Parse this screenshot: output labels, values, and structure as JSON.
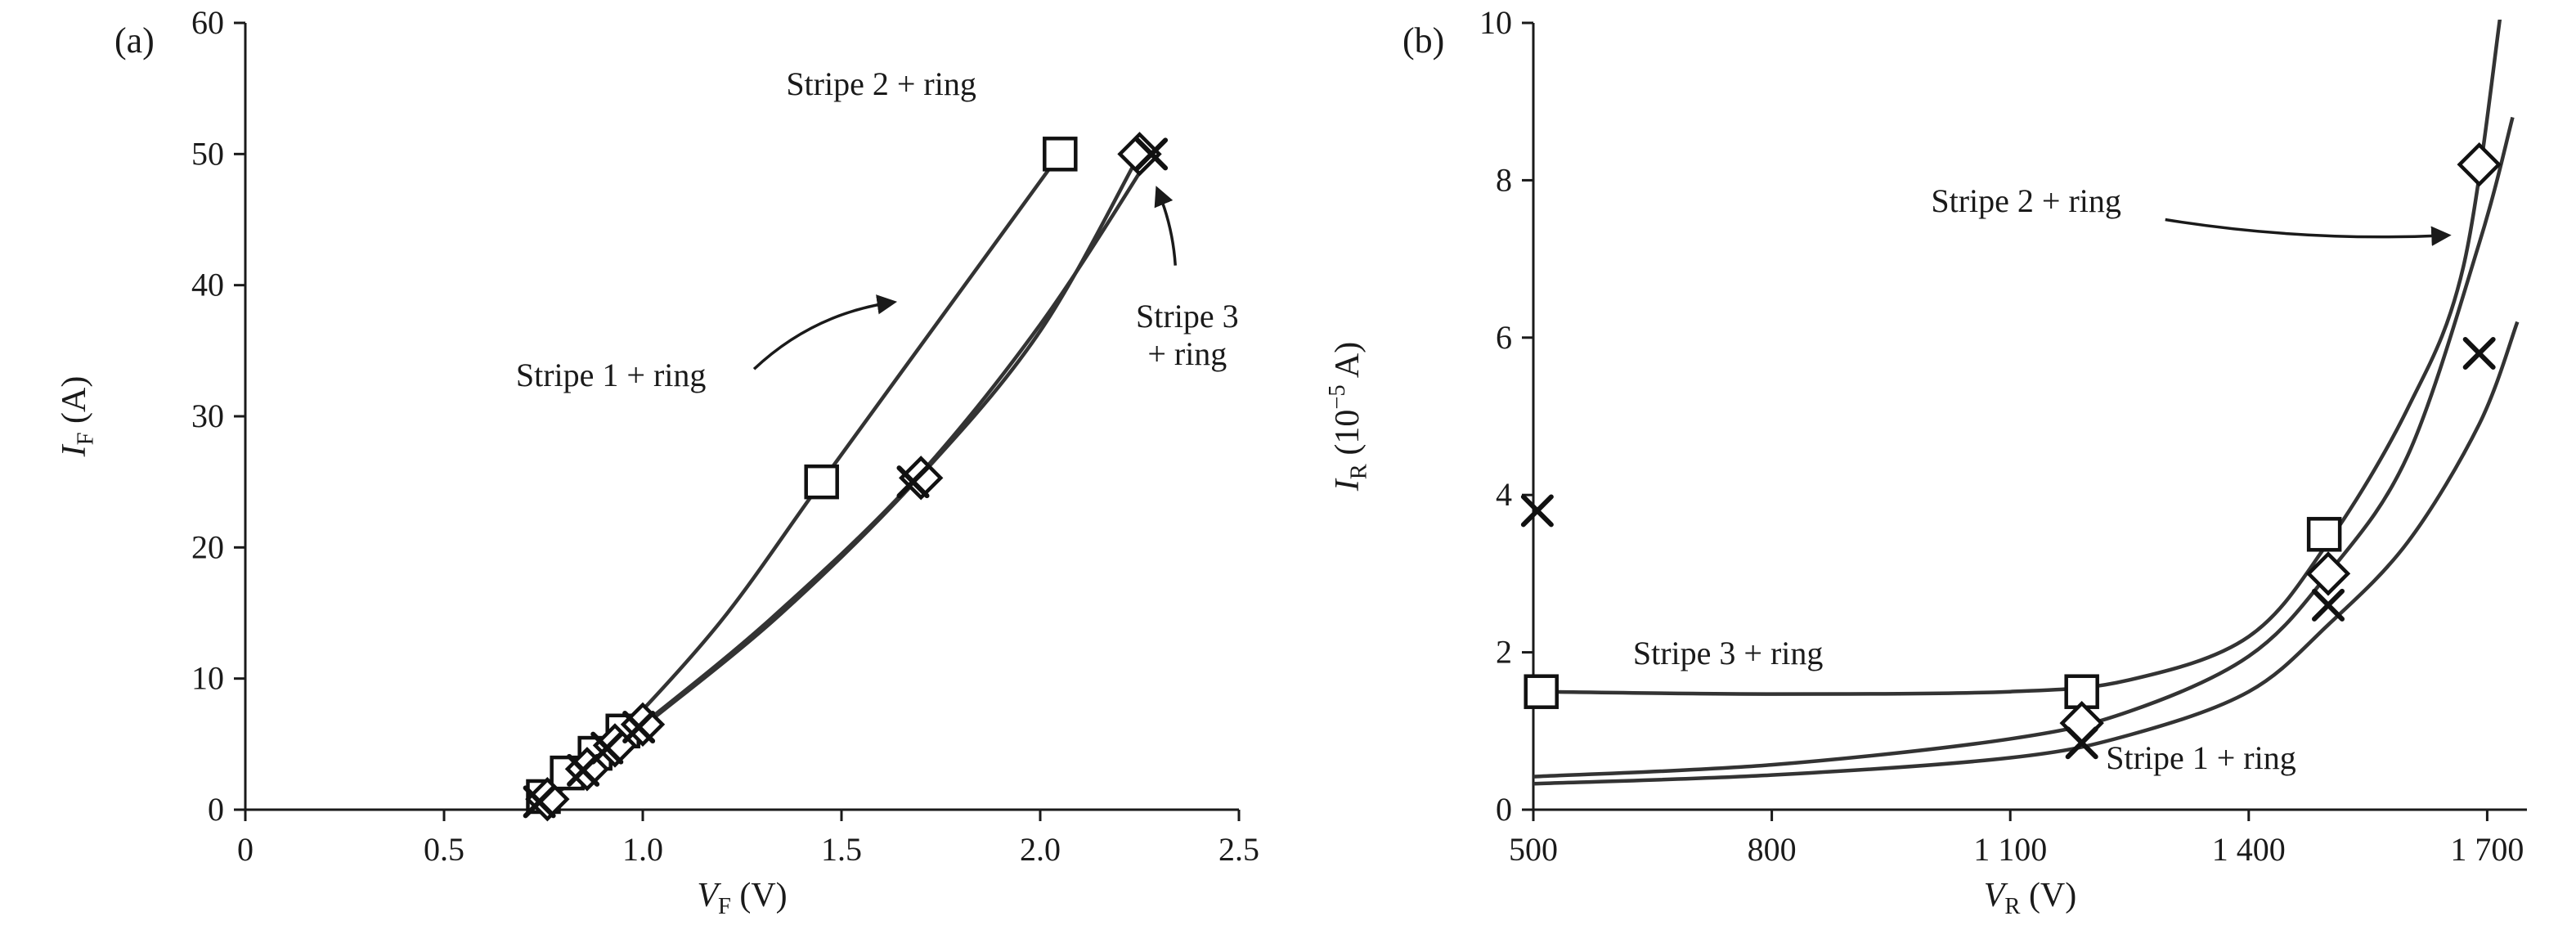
{
  "figure": {
    "background": "#ffffff",
    "ink": "#1a1a1a",
    "curve_color": "#333333",
    "marker_color": "#111111"
  },
  "chart_data": [
    {
      "type": "line",
      "tag": "(a)",
      "xlabel": [
        {
          "t": "V",
          "style": "italic"
        },
        {
          "t": "F",
          "script": "sub"
        },
        {
          "t": " (V)"
        }
      ],
      "ylabel": [
        {
          "t": "I",
          "style": "italic"
        },
        {
          "t": "F",
          "script": "sub"
        },
        {
          "t": " (A)"
        }
      ],
      "xlim": [
        0,
        2.5
      ],
      "ylim": [
        0,
        60
      ],
      "grid": false,
      "xtick_values": [
        0,
        0.5,
        1,
        1.5,
        2,
        2.5
      ],
      "xtick_labels": [
        "0",
        "0.5",
        "1.0",
        "1.5",
        "2.0",
        "2.5"
      ],
      "ytick_values": [
        0,
        10,
        20,
        30,
        40,
        50,
        60
      ],
      "ytick_labels": [
        "0",
        "10",
        "20",
        "30",
        "40",
        "50",
        "60"
      ],
      "series": [
        {
          "name": "Stripe 2 + ring",
          "marker": "square",
          "curve": [
            [
              0.72,
              0.4
            ],
            [
              0.8,
              2.3
            ],
            [
              0.88,
              4.2
            ],
            [
              0.95,
              6
            ],
            [
              1.2,
              14.5
            ],
            [
              1.45,
              25
            ],
            [
              1.75,
              37.5
            ],
            [
              2.05,
              50
            ]
          ],
          "points": [
            [
              0.75,
              1
            ],
            [
              0.81,
              2.8
            ],
            [
              0.88,
              4.3
            ],
            [
              0.95,
              6
            ],
            [
              1.45,
              25
            ],
            [
              2.05,
              50
            ]
          ]
        },
        {
          "name": "Stripe 3 + ring",
          "marker": "diamond",
          "curve": [
            [
              0.75,
              0.5
            ],
            [
              0.87,
              3.2
            ],
            [
              0.95,
              5.1
            ],
            [
              1.02,
              6.8
            ],
            [
              1.35,
              15
            ],
            [
              1.7,
              25.5
            ],
            [
              2.0,
              36.5
            ],
            [
              2.25,
              50
            ]
          ],
          "points": [
            [
              0.76,
              0.8
            ],
            [
              0.86,
              3.1
            ],
            [
              0.93,
              4.9
            ],
            [
              1.0,
              6.5
            ],
            [
              1.7,
              25.3
            ],
            [
              2.25,
              50
            ]
          ]
        },
        {
          "name": "Stripe 1 + ring",
          "marker": "x",
          "curve": [
            [
              0.73,
              0.4
            ],
            [
              0.85,
              3
            ],
            [
              0.93,
              4.9
            ],
            [
              1.0,
              6.5
            ],
            [
              1.32,
              14.5
            ],
            [
              1.68,
              25
            ],
            [
              2.0,
              37
            ],
            [
              2.28,
              50
            ]
          ],
          "points": [
            [
              0.74,
              0.6
            ],
            [
              0.85,
              3
            ],
            [
              0.91,
              4.7
            ],
            [
              0.99,
              6.3
            ],
            [
              1.68,
              25
            ],
            [
              2.28,
              50
            ]
          ]
        }
      ],
      "annotations": [
        {
          "lines": [
            "Stripe 2 + ring"
          ],
          "x": 1.6,
          "y": 54.5,
          "anchor": "middle"
        },
        {
          "lines": [
            "Stripe 1 + ring"
          ],
          "x": 0.92,
          "y": 32.3,
          "anchor": "middle",
          "arrow": {
            "from": [
              1.28,
              33.6
            ],
            "to": [
              1.63,
              38.7
            ],
            "bend": -30
          }
        },
        {
          "lines": [
            "Stripe 3",
            "+ ring"
          ],
          "x": 2.37,
          "y": 36.8,
          "anchor": "middle",
          "arrow": {
            "from": [
              2.34,
              41.5
            ],
            "to": [
              2.295,
              47.3
            ],
            "bend": 8
          }
        }
      ]
    },
    {
      "type": "line",
      "tag": "(b)",
      "xlabel": [
        {
          "t": "V",
          "style": "italic"
        },
        {
          "t": "R",
          "script": "sub"
        },
        {
          "t": " (V)"
        }
      ],
      "ylabel": [
        {
          "t": "I",
          "style": "italic"
        },
        {
          "t": "R",
          "script": "sub"
        },
        {
          "t": " (10"
        },
        {
          "t": "−5",
          "script": "sup"
        },
        {
          "t": " A)"
        }
      ],
      "xlim": [
        500,
        1750
      ],
      "ylim": [
        0,
        10
      ],
      "grid": false,
      "xtick_values": [
        500,
        800,
        1100,
        1400,
        1700
      ],
      "xtick_labels": [
        "500",
        "800",
        "1 100",
        "1 400",
        "1 700"
      ],
      "ytick_values": [
        0,
        2,
        4,
        6,
        8,
        10
      ],
      "ytick_labels": [
        "0",
        "2",
        "4",
        "6",
        "8",
        "10"
      ],
      "series": [
        {
          "name": "Stripe 3 + ring",
          "marker": "square",
          "curve": [
            [
              500,
              1.5
            ],
            [
              800,
              1.47
            ],
            [
              1100,
              1.5
            ],
            [
              1250,
              1.65
            ],
            [
              1400,
              2.2
            ],
            [
              1500,
              3.4
            ],
            [
              1600,
              5.1
            ],
            [
              1670,
              6.9
            ],
            [
              1718,
              10.2
            ]
          ],
          "points": [
            [
              510,
              1.5
            ],
            [
              1190,
              1.5
            ],
            [
              1495,
              3.5
            ]
          ]
        },
        {
          "name": "Stripe 2 + ring",
          "marker": "diamond",
          "curve": [
            [
              500,
              0.42
            ],
            [
              800,
              0.57
            ],
            [
              1100,
              0.9
            ],
            [
              1250,
              1.25
            ],
            [
              1400,
              1.95
            ],
            [
              1500,
              3.0
            ],
            [
              1600,
              4.5
            ],
            [
              1690,
              7.2
            ],
            [
              1732,
              8.8
            ]
          ],
          "points": [
            [
              1190,
              1.1
            ],
            [
              1500,
              3.0
            ],
            [
              1690,
              8.2
            ]
          ]
        },
        {
          "name": "Stripe 1 + ring",
          "marker": "x",
          "curve": [
            [
              500,
              0.33
            ],
            [
              800,
              0.44
            ],
            [
              1100,
              0.66
            ],
            [
              1250,
              0.95
            ],
            [
              1400,
              1.5
            ],
            [
              1500,
              2.35
            ],
            [
              1600,
              3.4
            ],
            [
              1690,
              4.9
            ],
            [
              1738,
              6.2
            ]
          ],
          "points": [
            [
              505,
              3.8
            ],
            [
              1190,
              0.85
            ],
            [
              1500,
              2.6
            ],
            [
              1690,
              5.8
            ]
          ]
        }
      ],
      "annotations": [
        {
          "lines": [
            "Stripe 2 + ring"
          ],
          "x": 1120,
          "y": 7.6,
          "anchor": "middle",
          "arrow": {
            "from": [
              1295,
              7.5
            ],
            "to": [
              1650,
              7.3
            ],
            "bend": 18
          }
        },
        {
          "lines": [
            "Stripe 3 + ring"
          ],
          "x": 745,
          "y": 1.85,
          "anchor": "middle"
        },
        {
          "lines": [
            "Stripe 1 + ring"
          ],
          "x": 1340,
          "y": 0.52,
          "anchor": "middle"
        }
      ]
    }
  ]
}
